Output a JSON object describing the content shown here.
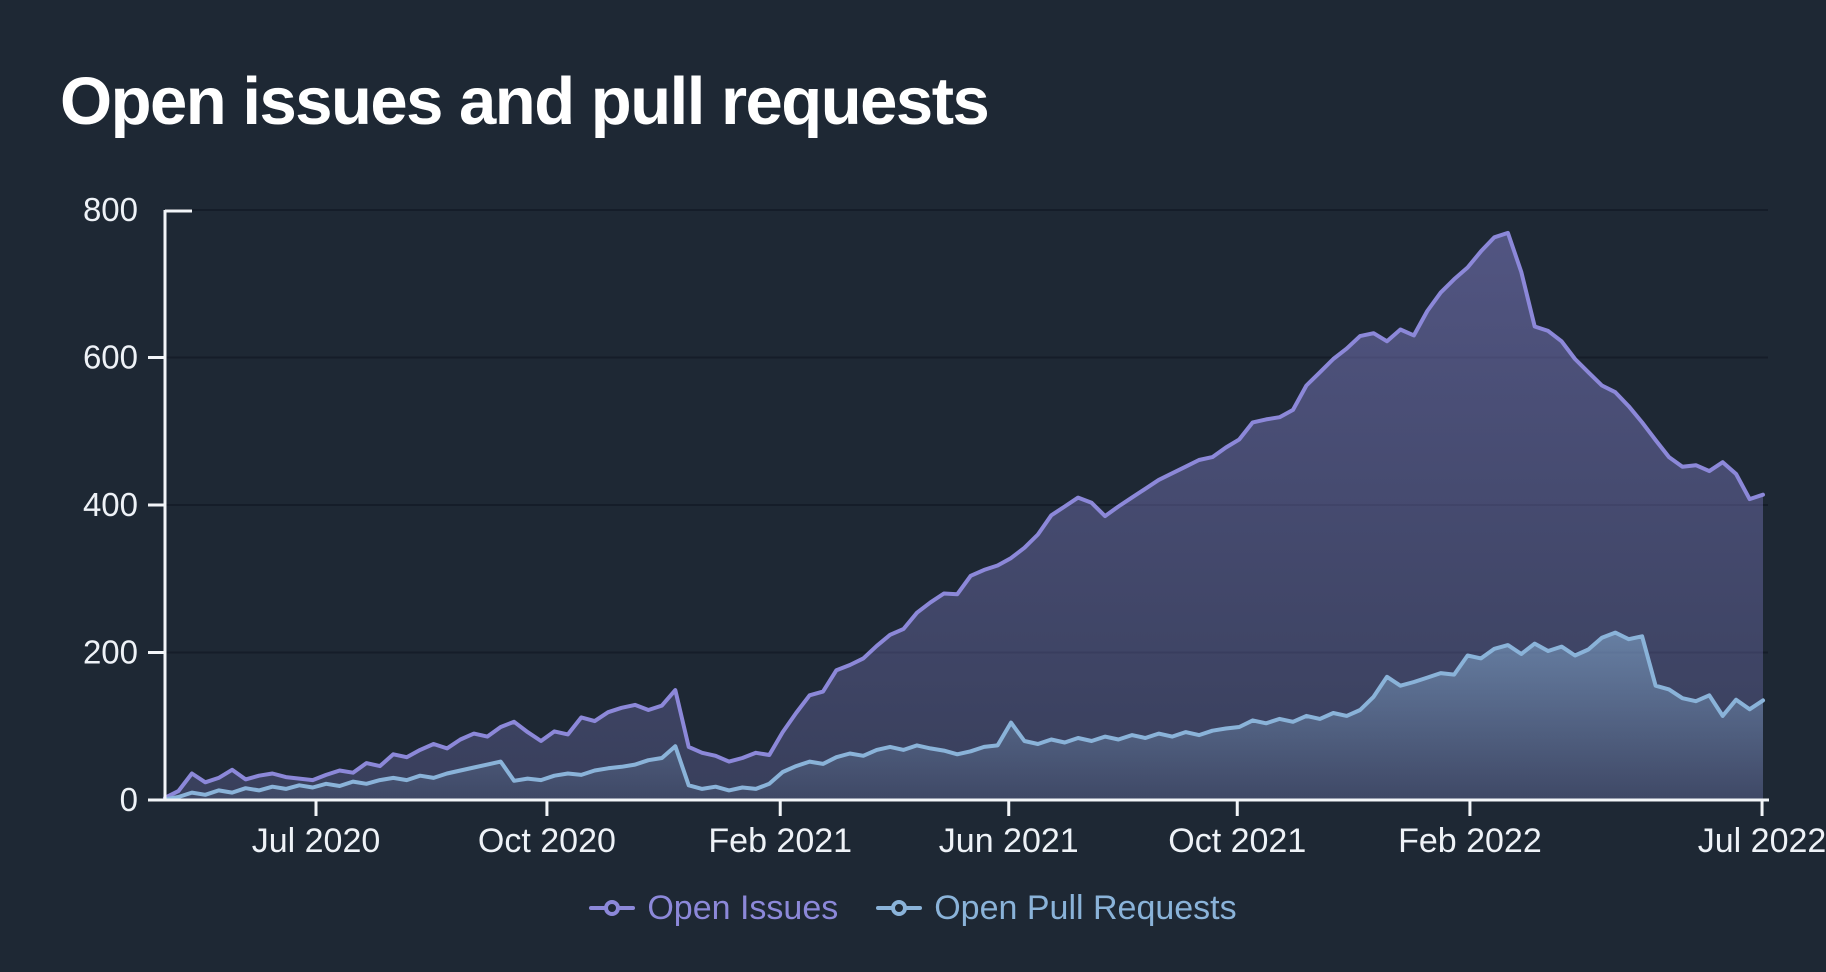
{
  "title": "Open issues and pull requests",
  "colors": {
    "background": "#1e2834",
    "grid": "#151d29",
    "axis": "#f2f5f8",
    "tick_label": "#eef2f7",
    "issues": "#8c88d9",
    "pulls": "#8ab3d9"
  },
  "chart_data": {
    "type": "area",
    "title": "Open issues and pull requests",
    "x_range": [
      "May 2020",
      "Aug 2022"
    ],
    "ylim": [
      0,
      800
    ],
    "y_ticks": [
      0,
      200,
      400,
      600,
      800
    ],
    "x_ticks": [
      {
        "label": "Jul 2020",
        "pos": 0.0945
      },
      {
        "label": "Oct 2020",
        "pos": 0.239
      },
      {
        "label": "Feb 2021",
        "pos": 0.385
      },
      {
        "label": "Jun 2021",
        "pos": 0.528
      },
      {
        "label": "Oct 2021",
        "pos": 0.671
      },
      {
        "label": "Feb 2022",
        "pos": 0.8166
      },
      {
        "label": "Jul 2022",
        "pos": 0.9994
      }
    ],
    "grid": true,
    "legend_position": "bottom",
    "series": [
      {
        "name": "Open Issues",
        "color": "#8c88d9",
        "values": [
          3,
          12,
          36,
          24,
          30,
          41,
          28,
          33,
          36,
          31,
          29,
          27,
          34,
          40,
          37,
          50,
          46,
          62,
          58,
          68,
          76,
          70,
          82,
          90,
          86,
          99,
          106,
          92,
          80,
          93,
          89,
          112,
          107,
          119,
          125,
          129,
          122,
          128,
          149,
          72,
          64,
          60,
          52,
          57,
          64,
          61,
          92,
          118,
          142,
          147,
          176,
          183,
          192,
          209,
          224,
          232,
          254,
          268,
          280,
          279,
          304,
          312,
          318,
          328,
          342,
          360,
          386,
          398,
          410,
          403,
          385,
          398,
          410,
          422,
          434,
          443,
          452,
          461,
          465,
          478,
          489,
          512,
          516,
          519,
          529,
          562,
          580,
          598,
          612,
          629,
          633,
          622,
          638,
          630,
          663,
          688,
          706,
          722,
          744,
          763,
          769,
          716,
          642,
          636,
          622,
          598,
          580,
          562,
          553,
          534,
          512,
          488,
          465,
          452,
          454,
          446,
          458,
          442,
          408,
          414
        ]
      },
      {
        "name": "Open Pull Requests",
        "color": "#8ab3d9",
        "values": [
          1,
          4,
          10,
          7,
          13,
          10,
          16,
          13,
          18,
          15,
          20,
          17,
          22,
          19,
          25,
          22,
          27,
          30,
          27,
          33,
          30,
          36,
          40,
          44,
          48,
          52,
          26,
          29,
          27,
          33,
          36,
          34,
          40,
          43,
          45,
          48,
          54,
          57,
          73,
          20,
          15,
          18,
          13,
          17,
          15,
          22,
          38,
          46,
          52,
          49,
          58,
          63,
          60,
          68,
          72,
          68,
          74,
          70,
          67,
          62,
          66,
          72,
          74,
          105,
          80,
          76,
          82,
          78,
          84,
          80,
          86,
          82,
          88,
          84,
          90,
          86,
          92,
          88,
          94,
          97,
          99,
          108,
          104,
          110,
          106,
          114,
          110,
          118,
          114,
          122,
          140,
          167,
          155,
          160,
          166,
          172,
          170,
          196,
          192,
          205,
          210,
          198,
          212,
          202,
          208,
          196,
          204,
          220,
          227,
          218,
          222,
          155,
          150,
          138,
          134,
          142,
          114,
          136,
          123,
          135
        ]
      }
    ]
  },
  "legend": {
    "items": [
      {
        "label": "Open Issues"
      },
      {
        "label": "Open Pull Requests"
      }
    ]
  }
}
